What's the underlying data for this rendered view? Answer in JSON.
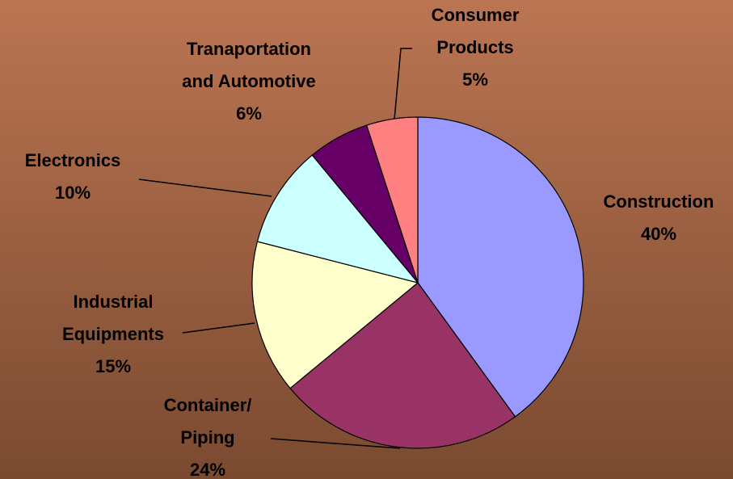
{
  "chart_data": {
    "type": "pie",
    "categories": [
      "Construction",
      "Container/\nPiping",
      "Industrial\nEquipments",
      "Electronics",
      "Tranaportation\nand Automotive",
      "Consumer\nProducts"
    ],
    "values": [
      40,
      24,
      15,
      10,
      6,
      5
    ],
    "value_labels": [
      "40%",
      "24%",
      "15%",
      "10%",
      "6%",
      "5%"
    ],
    "colors": [
      "#9999ff",
      "#993366",
      "#ffffcc",
      "#ccffff",
      "#660066",
      "#ff8080"
    ]
  }
}
